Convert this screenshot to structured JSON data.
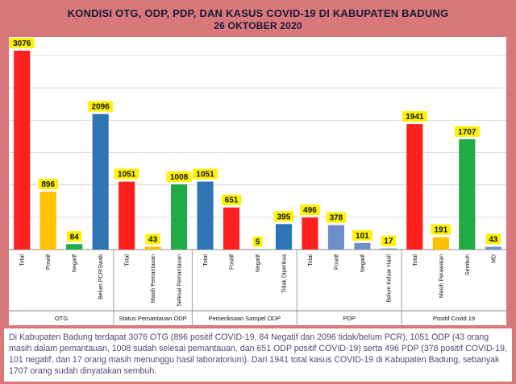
{
  "chart_data": {
    "type": "bar",
    "title": "KONDISI OTG, ODP, PDP, DAN KASUS COVID-19 DI KABUPATEN BADUNG",
    "subtitle": "26 OKTOBER 2020",
    "ylim": [
      0,
      3100
    ],
    "grid": true,
    "groups": [
      {
        "name": "OTG",
        "bars": [
          {
            "label": "Total",
            "value": 3076,
            "color": "#ff2020"
          },
          {
            "label": "Positif",
            "value": 896,
            "color": "#ffc000"
          },
          {
            "label": "Negatif",
            "value": 84,
            "color": "#22aa44"
          },
          {
            "label": "Belum PCR/Swab",
            "value": 2096,
            "color": "#2e75b6"
          }
        ]
      },
      {
        "name": "Status Pemantauan ODP",
        "bars": [
          {
            "label": "Total",
            "value": 1051,
            "color": "#ff2020"
          },
          {
            "label": "Masih Pemantauan",
            "value": 43,
            "color": "#ffc000"
          },
          {
            "label": "Selesai Pemantauan",
            "value": 1008,
            "color": "#22aa44"
          }
        ]
      },
      {
        "name": "Pemeriksaan Sampel ODP",
        "bars": [
          {
            "label": "Total",
            "value": 1051,
            "color": "#2e75b6"
          },
          {
            "label": "Positif",
            "value": 651,
            "color": "#ff2020"
          },
          {
            "label": "Negatif",
            "value": 5,
            "color": "#22aa44"
          },
          {
            "label": "Tidak Diperiksa",
            "value": 395,
            "color": "#2e75b6"
          }
        ]
      },
      {
        "name": "PDP",
        "bars": [
          {
            "label": "Total",
            "value": 496,
            "color": "#ff2020"
          },
          {
            "label": "Positif",
            "value": 378,
            "color": "#6f8fc8"
          },
          {
            "label": "Negatif",
            "value": 101,
            "color": "#6f8fc8"
          },
          {
            "label": "Belum Keluar Hasil",
            "value": 17,
            "color": "#6f8fc8"
          }
        ]
      },
      {
        "name": "Positif Covid 19",
        "bars": [
          {
            "label": "Total",
            "value": 1941,
            "color": "#ff2020"
          },
          {
            "label": "Masih Perawatan",
            "value": 191,
            "color": "#ffc000"
          },
          {
            "label": "Sembuh",
            "value": 1707,
            "color": "#22aa44"
          },
          {
            "label": "MD",
            "value": 43,
            "color": "#6f8fc8"
          }
        ]
      }
    ]
  },
  "caption": "Di Kabupaten Badung terdapat 3076 OTG (896 positif COVID-19, 84 Negatif dan 2096 tidak/belum PCR), 1051 ODP (43 orang masih dalam pemantauan, 1008 sudah selesai pemantauan, dan 651 ODP positif COVID-19) serta 496 PDP (378 positif COVID-19, 101 negatif, dan 17 orang masih menunggu hasil laboratorium). Dari 1941 total kasus COVID-19 di Kabupaten Badung, sebanyak 1707 orang sudah dinyatakan sembuh."
}
